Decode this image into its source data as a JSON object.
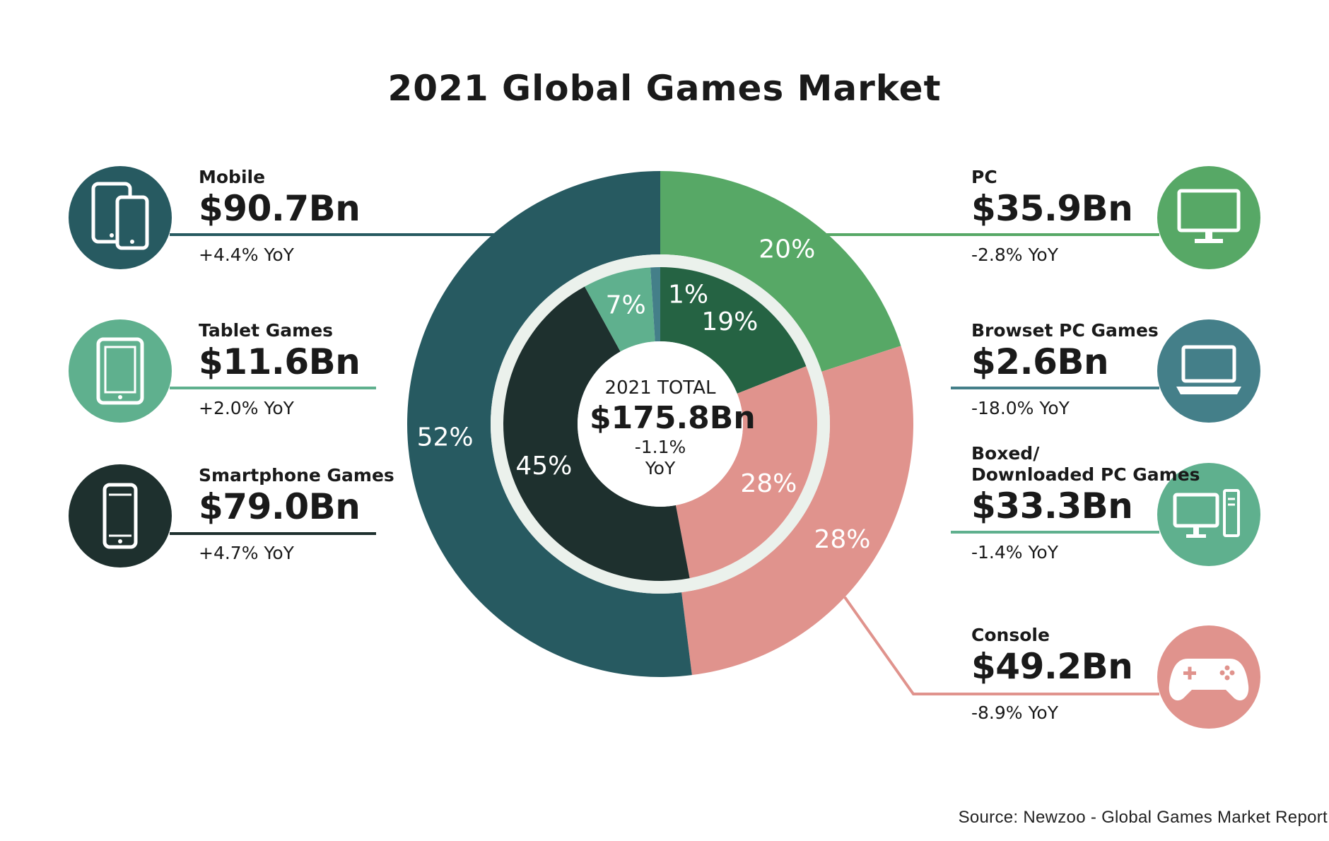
{
  "title": "2021 Global Games Market",
  "source": "Source: Newzoo - Global Games Market Report",
  "center": {
    "label": "2021 TOTAL",
    "value": "$175.8Bn",
    "yoy_line1": "-1.1%",
    "yoy_line2": "YoY"
  },
  "segments": {
    "mobile": {
      "name": "Mobile",
      "value": "$90.7Bn",
      "yoy": "+4.4% YoY",
      "color": "#275a61"
    },
    "tablet": {
      "name": "Tablet Games",
      "value": "$11.6Bn",
      "yoy": "+2.0% YoY",
      "color": "#5fb08e"
    },
    "smartphone": {
      "name": "Smartphone Games",
      "value": "$79.0Bn",
      "yoy": "+4.7% YoY",
      "color": "#1e302e"
    },
    "pc": {
      "name": "PC",
      "value": "$35.9Bn",
      "yoy": "-2.8% YoY",
      "color": "#57a866"
    },
    "browser": {
      "name": "Browset PC Games",
      "value": "$2.6Bn",
      "yoy": "-18.0% YoY",
      "color": "#447f89"
    },
    "boxed": {
      "name": "Boxed/\nDownloaded PC Games",
      "value": "$33.3Bn",
      "yoy": "-1.4% YoY",
      "color": "#5fb08e"
    },
    "console": {
      "name": "Console",
      "value": "$49.2Bn",
      "yoy": "-8.9% YoY",
      "color": "#e0938d"
    }
  },
  "chart_data": {
    "type": "pie",
    "title": "2021 Global Games Market",
    "rings": [
      {
        "ring": "outer",
        "slices": [
          {
            "name": "PC",
            "value": 20,
            "label": "20%",
            "color": "#57a866"
          },
          {
            "name": "Console",
            "value": 28,
            "label": "28%",
            "color": "#e0938d"
          },
          {
            "name": "Mobile",
            "value": 52,
            "label": "52%",
            "color": "#275a61"
          }
        ]
      },
      {
        "ring": "inner",
        "slices": [
          {
            "name": "Boxed/Downloaded PC Games",
            "value": 19,
            "label": "19%",
            "color": "#256343"
          },
          {
            "name": "Console",
            "value": 28,
            "label": "28%",
            "color": "#e0938d"
          },
          {
            "name": "Smartphone Games",
            "value": 45,
            "label": "45%",
            "color": "#1e302e"
          },
          {
            "name": "Tablet Games",
            "value": 7,
            "label": "7%",
            "color": "#5fb08e"
          },
          {
            "name": "Browset PC Games",
            "value": 1,
            "label": "1%",
            "color": "#447f89"
          }
        ]
      }
    ]
  }
}
